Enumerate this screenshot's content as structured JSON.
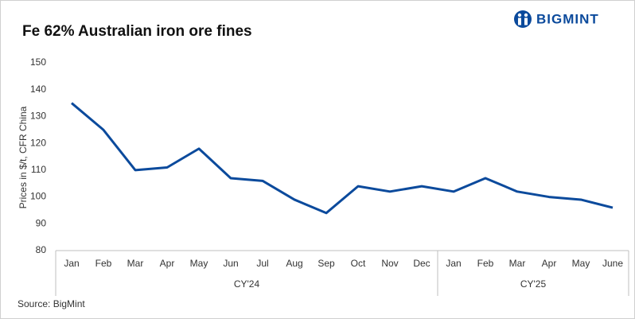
{
  "chart_data": {
    "type": "line",
    "title": "Fe 62% Australian iron ore fines",
    "logo": "BIGMINT",
    "source": "Source: BigMint",
    "y_label": "Prices in $/t, CFR China",
    "groups": [
      {
        "name": "CY'24",
        "categories": [
          "Jan",
          "Feb",
          "Mar",
          "Apr",
          "May",
          "Jun",
          "Jul",
          "Aug",
          "Sep",
          "Oct",
          "Nov",
          "Dec"
        ]
      },
      {
        "name": "CY'25",
        "categories": [
          "Jan",
          "Feb",
          "Mar",
          "Apr",
          "May",
          "June"
        ]
      }
    ],
    "series": [
      {
        "color": "#0b4a9c",
        "values": [
          135,
          125,
          110,
          111,
          118,
          107,
          106,
          99,
          94,
          104,
          102,
          104,
          102,
          107,
          102,
          100,
          99,
          96
        ]
      }
    ],
    "ylim": [
      80,
      150
    ],
    "yticks": [
      80,
      90,
      100,
      110,
      120,
      130,
      140,
      150
    ],
    "grid": false
  }
}
